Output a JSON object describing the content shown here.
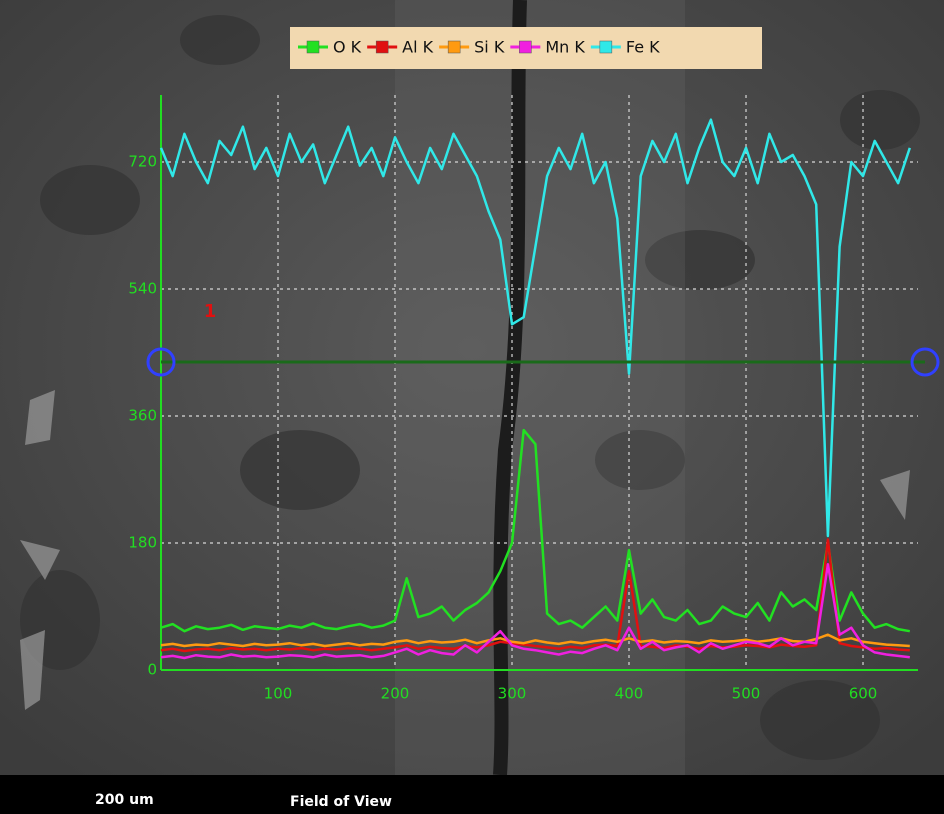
{
  "chart_data": {
    "type": "line",
    "x": [
      0,
      10,
      20,
      30,
      40,
      50,
      60,
      70,
      80,
      90,
      100,
      110,
      120,
      130,
      140,
      150,
      160,
      170,
      180,
      190,
      200,
      210,
      220,
      230,
      240,
      250,
      260,
      270,
      280,
      290,
      300,
      310,
      320,
      330,
      340,
      350,
      360,
      370,
      380,
      390,
      400,
      410,
      420,
      430,
      440,
      450,
      460,
      470,
      480,
      490,
      500,
      510,
      520,
      530,
      540,
      550,
      560,
      570,
      580,
      590,
      600,
      610,
      620,
      630,
      640
    ],
    "series": [
      {
        "name": "O K",
        "color": "#22e022",
        "values": [
          60,
          65,
          55,
          62,
          58,
          60,
          64,
          57,
          62,
          60,
          58,
          63,
          60,
          66,
          60,
          58,
          62,
          65,
          60,
          63,
          70,
          130,
          75,
          80,
          90,
          70,
          85,
          95,
          110,
          140,
          180,
          340,
          320,
          80,
          65,
          70,
          60,
          75,
          90,
          70,
          170,
          80,
          100,
          75,
          70,
          85,
          65,
          70,
          90,
          80,
          75,
          95,
          70,
          110,
          90,
          100,
          85,
          180,
          70,
          110,
          80,
          60,
          65,
          58,
          55
        ]
      },
      {
        "name": "Al K",
        "color": "#e01010",
        "values": [
          28,
          30,
          27,
          29,
          30,
          28,
          31,
          29,
          30,
          28,
          30,
          29,
          31,
          28,
          30,
          29,
          31,
          30,
          28,
          30,
          32,
          35,
          30,
          33,
          31,
          30,
          34,
          32,
          35,
          40,
          38,
          36,
          34,
          32,
          30,
          33,
          31,
          35,
          36,
          34,
          140,
          34,
          33,
          31,
          35,
          33,
          30,
          34,
          32,
          33,
          35,
          34,
          32,
          36,
          34,
          33,
          35,
          185,
          38,
          34,
          32,
          30,
          31,
          29,
          28
        ]
      },
      {
        "name": "Si K",
        "color": "#ff9a10",
        "values": [
          35,
          37,
          34,
          36,
          35,
          38,
          36,
          34,
          37,
          35,
          36,
          38,
          35,
          37,
          34,
          36,
          38,
          35,
          37,
          36,
          40,
          42,
          38,
          41,
          39,
          40,
          43,
          38,
          42,
          45,
          40,
          38,
          42,
          39,
          37,
          40,
          38,
          41,
          43,
          40,
          45,
          40,
          42,
          39,
          41,
          40,
          38,
          42,
          40,
          41,
          43,
          40,
          42,
          45,
          41,
          40,
          44,
          50,
          42,
          45,
          40,
          38,
          36,
          35,
          34
        ]
      },
      {
        "name": "Mn K",
        "color": "#f020e0",
        "values": [
          18,
          20,
          17,
          21,
          19,
          18,
          22,
          19,
          20,
          18,
          19,
          21,
          20,
          18,
          22,
          19,
          20,
          21,
          18,
          20,
          25,
          30,
          22,
          28,
          24,
          22,
          35,
          25,
          40,
          55,
          35,
          30,
          28,
          25,
          22,
          26,
          24,
          30,
          35,
          28,
          60,
          30,
          40,
          28,
          32,
          35,
          25,
          38,
          30,
          35,
          40,
          38,
          33,
          45,
          35,
          40,
          38,
          150,
          50,
          60,
          35,
          25,
          22,
          20,
          18
        ]
      },
      {
        "name": "Fe K",
        "color": "#30e8e8",
        "values": [
          740,
          700,
          760,
          720,
          690,
          750,
          730,
          770,
          710,
          740,
          700,
          760,
          720,
          745,
          690,
          730,
          770,
          715,
          740,
          700,
          755,
          720,
          690,
          740,
          710,
          760,
          730,
          700,
          650,
          610,
          490,
          500,
          600,
          700,
          740,
          710,
          760,
          690,
          720,
          640,
          420,
          700,
          750,
          720,
          760,
          690,
          740,
          780,
          720,
          700,
          740,
          690,
          760,
          720,
          730,
          700,
          660,
          190,
          600,
          720,
          700,
          750,
          720,
          690,
          740
        ]
      }
    ],
    "xlim": [
      0,
      647
    ],
    "ylim": [
      0,
      815
    ],
    "xticks": [
      100,
      200,
      300,
      400,
      500,
      600
    ],
    "yticks": [
      0,
      180,
      360,
      540,
      720
    ],
    "grid": true
  },
  "image_marker": "1",
  "footer": {
    "scale": "200 um",
    "label": "Field of View"
  }
}
